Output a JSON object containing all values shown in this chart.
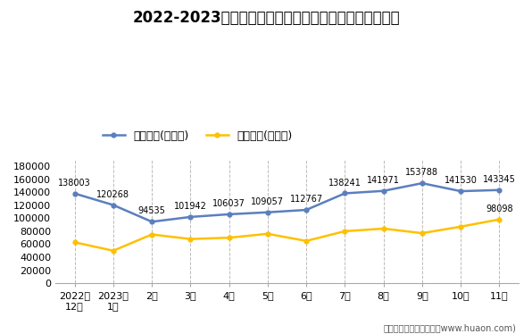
{
  "title": "2022-2023年山西省商品收发货人所在地进、出口额统计",
  "x_labels": [
    "2022年\n12月",
    "2023年\n1月",
    "2月",
    "3月",
    "4月",
    "5月",
    "6月",
    "7月",
    "8月",
    "9月",
    "10月",
    "11月"
  ],
  "export_values": [
    138003,
    120268,
    94535,
    101942,
    106037,
    109057,
    112767,
    138241,
    141971,
    153788,
    141530,
    143345
  ],
  "import_values": [
    63000,
    50000,
    75000,
    68000,
    70000,
    76000,
    65000,
    80000,
    84000,
    77000,
    87000,
    98098
  ],
  "export_label": "出口总额(万美元)",
  "import_label": "进口总额(万美元)",
  "export_color": "#5b7fbe",
  "import_color": "#FFC000",
  "import_annotation_last": 98098,
  "ylim": [
    0,
    190000
  ],
  "yticks": [
    0,
    20000,
    40000,
    60000,
    80000,
    100000,
    120000,
    140000,
    160000,
    180000
  ],
  "footer": "制图：华经产业研究院（www.huaon.com)",
  "background_color": "#ffffff",
  "plot_bg_color": "#ffffff",
  "vgrid_color": "#bbbbbb",
  "title_fontsize": 12,
  "legend_fontsize": 9,
  "annotation_fontsize": 7,
  "tick_fontsize": 8
}
